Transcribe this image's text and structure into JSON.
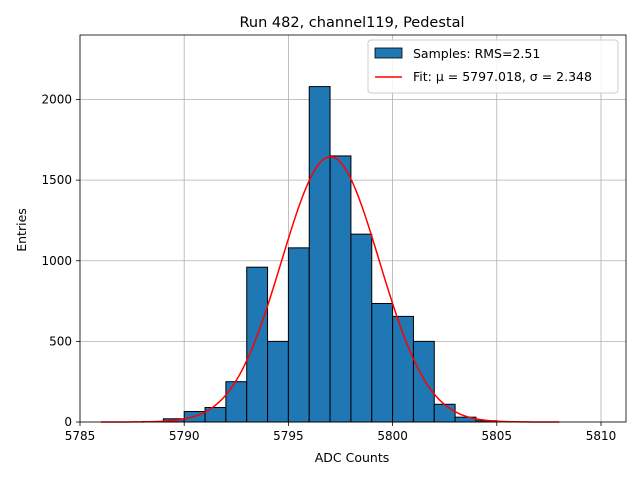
{
  "chart_data": {
    "type": "bar",
    "title": "Run 482, channel119, Pedestal",
    "xlabel": "ADC Counts",
    "ylabel": "Entries",
    "xlim": [
      5785,
      5811.2
    ],
    "ylim": [
      0,
      2400
    ],
    "xticks": [
      5785,
      5790,
      5795,
      5800,
      5805,
      5810
    ],
    "yticks": [
      0,
      500,
      1000,
      1500,
      2000
    ],
    "grid": true,
    "legend_position": "top-right",
    "bin_width": 1,
    "bins": [
      {
        "x0": 5788,
        "count": 3
      },
      {
        "x0": 5789,
        "count": 20
      },
      {
        "x0": 5790,
        "count": 65
      },
      {
        "x0": 5791,
        "count": 90
      },
      {
        "x0": 5792,
        "count": 250
      },
      {
        "x0": 5793,
        "count": 960
      },
      {
        "x0": 5794,
        "count": 500
      },
      {
        "x0": 5795,
        "count": 1080
      },
      {
        "x0": 5796,
        "count": 2080
      },
      {
        "x0": 5797,
        "count": 1650
      },
      {
        "x0": 5798,
        "count": 1165
      },
      {
        "x0": 5799,
        "count": 735
      },
      {
        "x0": 5800,
        "count": 655
      },
      {
        "x0": 5801,
        "count": 500
      },
      {
        "x0": 5802,
        "count": 110
      },
      {
        "x0": 5803,
        "count": 30
      },
      {
        "x0": 5804,
        "count": 8
      }
    ],
    "fit": {
      "mu": 5797.018,
      "sigma": 2.348,
      "amplitude": 1645,
      "x_range": [
        5786,
        5808
      ]
    },
    "series": [
      {
        "name": "Samples: RMS=2.51",
        "kind": "histogram",
        "color": "#1f77b4"
      },
      {
        "name": "Fit: μ = 5797.018, σ = 2.348",
        "kind": "line",
        "color": "#ff0000"
      }
    ]
  }
}
